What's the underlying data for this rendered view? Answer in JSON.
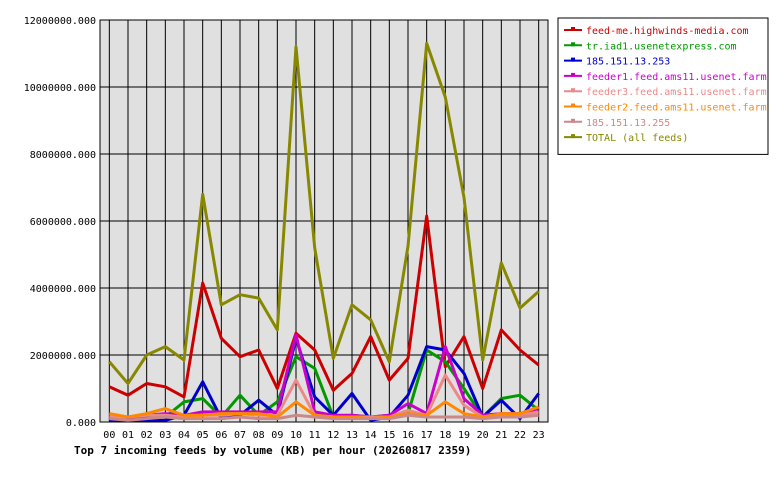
{
  "chart_data": {
    "type": "line",
    "title": "Top 7 incoming feeds by volume (KB) per hour (20260817 2359)",
    "x": [
      "00",
      "01",
      "02",
      "03",
      "04",
      "05",
      "06",
      "07",
      "08",
      "09",
      "10",
      "11",
      "12",
      "13",
      "14",
      "15",
      "16",
      "17",
      "18",
      "19",
      "20",
      "21",
      "22",
      "23"
    ],
    "ylim": [
      0,
      12000000
    ],
    "yticks": [
      0,
      2000000,
      4000000,
      6000000,
      8000000,
      10000000,
      12000000
    ],
    "ytick_labels": [
      "0.000",
      "2000000.000",
      "4000000.000",
      "6000000.000",
      "8000000.000",
      "10000000.000",
      "12000000.000"
    ],
    "grid": true,
    "legend_position": "right",
    "series": [
      {
        "name": "feed-me.highwinds-media.com",
        "color": "#cc0000",
        "values": [
          1050000,
          800000,
          1150000,
          1050000,
          750000,
          4150000,
          2500000,
          1950000,
          2150000,
          1000000,
          2650000,
          2150000,
          950000,
          1450000,
          2550000,
          1250000,
          1900000,
          6150000,
          1650000,
          2550000,
          1000000,
          2750000,
          2150000,
          1700000
        ]
      },
      {
        "name": "tr.iad1.usenetexpress.com",
        "color": "#009900",
        "values": [
          100000,
          100000,
          150000,
          150000,
          600000,
          700000,
          150000,
          800000,
          200000,
          600000,
          1950000,
          1600000,
          150000,
          200000,
          150000,
          200000,
          250000,
          2150000,
          1800000,
          1000000,
          150000,
          700000,
          800000,
          350000
        ]
      },
      {
        "name": "185.151.13.253",
        "color": "#0000cc",
        "values": [
          50000,
          50000,
          50000,
          50000,
          200000,
          1200000,
          100000,
          200000,
          650000,
          200000,
          2500000,
          750000,
          200000,
          850000,
          50000,
          150000,
          800000,
          2250000,
          2150000,
          1450000,
          150000,
          650000,
          100000,
          850000
        ]
      },
      {
        "name": "feeder1.feed.ams11.usenet.farm",
        "color": "#cc00cc",
        "values": [
          150000,
          100000,
          200000,
          250000,
          200000,
          300000,
          300000,
          300000,
          300000,
          300000,
          2600000,
          300000,
          200000,
          200000,
          150000,
          200000,
          550000,
          250000,
          2250000,
          700000,
          200000,
          250000,
          250000,
          400000
        ]
      },
      {
        "name": "feeder3.feed.ams11.usenet.farm",
        "color": "#ee8888",
        "values": [
          150000,
          150000,
          200000,
          200000,
          150000,
          200000,
          200000,
          250000,
          200000,
          200000,
          1250000,
          200000,
          150000,
          150000,
          150000,
          150000,
          350000,
          200000,
          1400000,
          500000,
          150000,
          200000,
          200000,
          300000
        ]
      },
      {
        "name": "feeder2.feed.ams11.usenet.farm",
        "color": "#ff8800",
        "values": [
          250000,
          150000,
          250000,
          400000,
          200000,
          200000,
          250000,
          250000,
          250000,
          150000,
          600000,
          200000,
          150000,
          150000,
          100000,
          150000,
          250000,
          200000,
          600000,
          250000,
          150000,
          250000,
          250000,
          450000
        ]
      },
      {
        "name": "185.151.13.255",
        "color": "#cc8888",
        "values": [
          100000,
          50000,
          100000,
          150000,
          100000,
          100000,
          100000,
          150000,
          100000,
          100000,
          200000,
          150000,
          100000,
          100000,
          100000,
          100000,
          200000,
          150000,
          150000,
          150000,
          100000,
          150000,
          150000,
          200000
        ]
      },
      {
        "name": "TOTAL (all feeds)",
        "color": "#888800",
        "values": [
          1800000,
          1150000,
          2000000,
          2250000,
          1850000,
          6800000,
          3500000,
          3800000,
          3700000,
          2750000,
          11200000,
          5200000,
          1900000,
          3500000,
          3050000,
          1800000,
          5250000,
          11300000,
          9700000,
          6700000,
          1850000,
          4750000,
          3400000,
          3900000
        ]
      }
    ]
  }
}
